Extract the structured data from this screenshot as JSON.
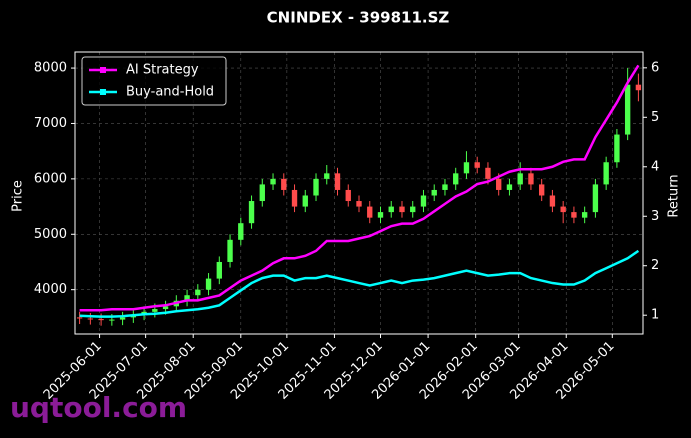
{
  "chart_data": {
    "type": "candlestick",
    "title": "CNINDEX - 399811.SZ",
    "ylabel": "Price",
    "y2label": "Return",
    "watermark": "uqtool.com",
    "x": [
      "2025-05-19",
      "2025-05-26",
      "2025-06-02",
      "2025-06-09",
      "2025-06-16",
      "2025-06-23",
      "2025-06-30",
      "2025-07-07",
      "2025-07-14",
      "2025-07-21",
      "2025-07-28",
      "2025-08-04",
      "2025-08-11",
      "2025-08-18",
      "2025-08-25",
      "2025-09-01",
      "2025-09-08",
      "2025-09-15",
      "2025-09-22",
      "2025-09-29",
      "2025-10-06",
      "2025-10-13",
      "2025-10-20",
      "2025-10-27",
      "2025-11-03",
      "2025-11-10",
      "2025-11-17",
      "2025-11-24",
      "2025-12-01",
      "2025-12-08",
      "2025-12-15",
      "2025-12-22",
      "2025-12-29",
      "2026-01-05",
      "2026-01-12",
      "2026-01-19",
      "2026-01-26",
      "2026-02-02",
      "2026-02-09",
      "2026-02-16",
      "2026-02-23",
      "2026-03-02",
      "2026-03-09",
      "2026-03-16",
      "2026-03-23",
      "2026-03-30",
      "2026-04-06",
      "2026-04-13",
      "2026-04-20",
      "2026-04-27",
      "2026-05-04",
      "2026-05-11",
      "2026-05-18"
    ],
    "open": [
      3500,
      3480,
      3470,
      3450,
      3460,
      3500,
      3550,
      3600,
      3650,
      3700,
      3800,
      3900,
      4000,
      4200,
      4500,
      4900,
      5200,
      5600,
      5900,
      6000,
      5800,
      5500,
      5700,
      6000,
      6100,
      5800,
      5600,
      5500,
      5300,
      5400,
      5500,
      5400,
      5500,
      5700,
      5800,
      5900,
      6100,
      6300,
      6200,
      6000,
      5800,
      5900,
      6100,
      5900,
      5700,
      5500,
      5400,
      5300,
      5400,
      5900,
      6300,
      6800,
      7700
    ],
    "high": [
      3600,
      3580,
      3570,
      3560,
      3600,
      3650,
      3700,
      3750,
      3800,
      3900,
      4000,
      4100,
      4300,
      4600,
      5000,
      5300,
      5700,
      6000,
      6100,
      6100,
      5900,
      5800,
      6100,
      6250,
      6200,
      5900,
      5700,
      5600,
      5500,
      5600,
      5600,
      5600,
      5800,
      5900,
      6000,
      6200,
      6500,
      6400,
      6300,
      6100,
      6000,
      6300,
      6200,
      6000,
      5800,
      5600,
      5500,
      5500,
      6000,
      6400,
      6900,
      8000,
      7900
    ],
    "low": [
      3380,
      3370,
      3350,
      3350,
      3360,
      3400,
      3450,
      3500,
      3550,
      3600,
      3700,
      3800,
      3900,
      4100,
      4400,
      4800,
      5100,
      5500,
      5800,
      5700,
      5400,
      5400,
      5600,
      5900,
      5700,
      5500,
      5400,
      5200,
      5200,
      5300,
      5300,
      5300,
      5400,
      5600,
      5700,
      5800,
      6000,
      6100,
      5900,
      5700,
      5700,
      5800,
      5800,
      5600,
      5400,
      5200,
      5200,
      5200,
      5300,
      5800,
      6200,
      6700,
      7400
    ],
    "close": [
      3480,
      3470,
      3450,
      3460,
      3500,
      3550,
      3600,
      3650,
      3700,
      3800,
      3900,
      4000,
      4200,
      4500,
      4900,
      5200,
      5600,
      5900,
      6000,
      5800,
      5500,
      5700,
      6000,
      6100,
      5800,
      5600,
      5500,
      5300,
      5400,
      5500,
      5400,
      5500,
      5700,
      5800,
      5900,
      6100,
      6300,
      6200,
      6000,
      5800,
      5900,
      6100,
      5900,
      5700,
      5500,
      5400,
      5300,
      5400,
      5900,
      6300,
      6800,
      7700,
      7600
    ],
    "up_color": "#4cff4c",
    "down_color": "#ff4c4c",
    "series": [
      {
        "name": "AI Strategy",
        "color": "#ff00ff",
        "axis": "y2",
        "values": [
          1.1,
          1.1,
          1.1,
          1.12,
          1.12,
          1.12,
          1.15,
          1.18,
          1.2,
          1.25,
          1.3,
          1.3,
          1.35,
          1.4,
          1.55,
          1.7,
          1.8,
          1.9,
          2.05,
          2.15,
          2.15,
          2.2,
          2.3,
          2.5,
          2.5,
          2.5,
          2.55,
          2.6,
          2.7,
          2.8,
          2.85,
          2.85,
          2.95,
          3.1,
          3.25,
          3.4,
          3.5,
          3.65,
          3.7,
          3.8,
          3.9,
          3.95,
          3.95,
          3.95,
          4.0,
          4.1,
          4.15,
          4.15,
          4.6,
          4.95,
          5.3,
          5.7,
          6.05
        ]
      },
      {
        "name": "Buy-and-Hold",
        "color": "#00ffff",
        "axis": "y2",
        "values": [
          0.99,
          0.98,
          0.97,
          0.97,
          0.98,
          1.0,
          1.02,
          1.03,
          1.05,
          1.08,
          1.1,
          1.12,
          1.15,
          1.2,
          1.35,
          1.5,
          1.65,
          1.75,
          1.8,
          1.8,
          1.7,
          1.75,
          1.75,
          1.8,
          1.75,
          1.7,
          1.65,
          1.6,
          1.65,
          1.7,
          1.65,
          1.7,
          1.72,
          1.75,
          1.8,
          1.85,
          1.9,
          1.85,
          1.8,
          1.82,
          1.85,
          1.85,
          1.75,
          1.7,
          1.65,
          1.62,
          1.62,
          1.7,
          1.85,
          1.95,
          2.05,
          2.15,
          2.3
        ]
      }
    ],
    "xlim": [
      "2025-05-16",
      "2026-05-21"
    ],
    "xticks": [
      "2025-06-01",
      "2025-07-01",
      "2025-08-01",
      "2025-09-01",
      "2025-10-01",
      "2025-11-01",
      "2025-12-01",
      "2026-01-01",
      "2026-02-01",
      "2026-03-01",
      "2026-04-01",
      "2026-05-01"
    ],
    "ylim": [
      3200,
      8290
    ],
    "yticks": [
      4000,
      5000,
      6000,
      7000,
      8000
    ],
    "y2lim": [
      0.62,
      6.32
    ],
    "y2ticks": [
      1,
      2,
      3,
      4,
      5,
      6
    ],
    "grid": true,
    "legend": "upper left"
  }
}
